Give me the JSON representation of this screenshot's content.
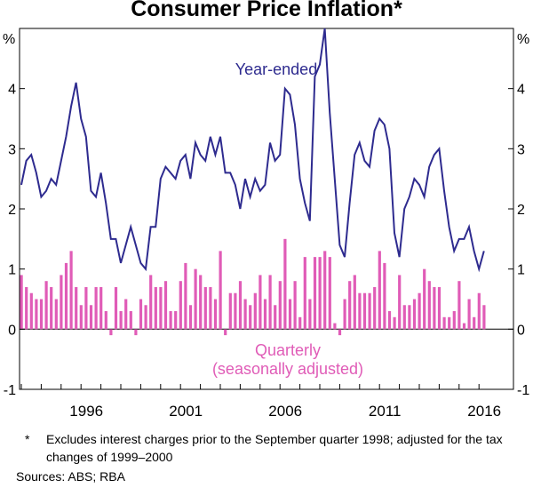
{
  "chart_data": {
    "type": "bar+line",
    "title": "Consumer Price Inflation*",
    "y_unit_label": "%",
    "ylim": [
      -1,
      5
    ],
    "yticks": [
      -1,
      0,
      1,
      2,
      3,
      4
    ],
    "x_tick_labels": [
      "1996",
      "2001",
      "2006",
      "2011",
      "2016"
    ],
    "x_tick_positions": [
      1996.0,
      2001.0,
      2006.0,
      2011.0,
      2016.0
    ],
    "x_range": [
      1993.0,
      2016.75
    ],
    "grid": false,
    "line_series": {
      "name": "Year-ended",
      "color": "#2e2b8f",
      "x": [
        1993.0,
        1993.25,
        1993.5,
        1993.75,
        1994.0,
        1994.25,
        1994.5,
        1994.75,
        1995.0,
        1995.25,
        1995.5,
        1995.75,
        1996.0,
        1996.25,
        1996.5,
        1996.75,
        1997.0,
        1997.25,
        1997.5,
        1997.75,
        1998.0,
        1998.25,
        1998.5,
        1998.75,
        1999.0,
        1999.25,
        1999.5,
        1999.75,
        2000.0,
        2000.25,
        2000.5,
        2000.75,
        2001.0,
        2001.25,
        2001.5,
        2001.75,
        2002.0,
        2002.25,
        2002.5,
        2002.75,
        2003.0,
        2003.25,
        2003.5,
        2003.75,
        2004.0,
        2004.25,
        2004.5,
        2004.75,
        2005.0,
        2005.25,
        2005.5,
        2005.75,
        2006.0,
        2006.25,
        2006.5,
        2006.75,
        2007.0,
        2007.25,
        2007.5,
        2007.75,
        2008.0,
        2008.25,
        2008.5,
        2008.75,
        2009.0,
        2009.25,
        2009.5,
        2009.75,
        2010.0,
        2010.25,
        2010.5,
        2010.75,
        2011.0,
        2011.25,
        2011.5,
        2011.75,
        2012.0,
        2012.25,
        2012.5,
        2012.75,
        2013.0,
        2013.25,
        2013.5,
        2013.75,
        2014.0,
        2014.25,
        2014.5,
        2014.75,
        2015.0,
        2015.25,
        2015.5,
        2015.75,
        2016.0,
        2016.25
      ],
      "values": [
        2.4,
        2.8,
        2.9,
        2.6,
        2.2,
        2.3,
        2.5,
        2.4,
        2.8,
        3.2,
        3.7,
        4.1,
        3.5,
        3.2,
        2.3,
        2.2,
        2.6,
        2.1,
        1.5,
        1.5,
        1.1,
        1.4,
        1.7,
        1.4,
        1.1,
        1.0,
        1.7,
        1.7,
        2.5,
        2.7,
        2.6,
        2.5,
        2.8,
        2.9,
        2.5,
        3.1,
        2.9,
        2.8,
        3.2,
        2.9,
        3.2,
        2.6,
        2.6,
        2.4,
        2.0,
        2.5,
        2.2,
        2.5,
        2.3,
        2.4,
        3.1,
        2.8,
        2.9,
        4.0,
        3.9,
        3.4,
        2.5,
        2.1,
        1.8,
        4.2,
        4.4,
        5.0,
        3.6,
        2.5,
        1.4,
        1.2,
        2.1,
        2.9,
        3.1,
        2.8,
        2.7,
        3.3,
        3.5,
        3.4,
        3.0,
        1.6,
        1.2,
        2.0,
        2.2,
        2.5,
        2.4,
        2.2,
        2.7,
        2.9,
        3.0,
        2.3,
        1.7,
        1.3,
        1.5,
        1.5,
        1.7,
        1.3,
        1.0,
        1.3
      ]
    },
    "bar_series": {
      "name": "Quarterly",
      "name_line2": "(seasonally adjusted)",
      "color": "#e05cb7",
      "x": [
        1993.0,
        1993.25,
        1993.5,
        1993.75,
        1994.0,
        1994.25,
        1994.5,
        1994.75,
        1995.0,
        1995.25,
        1995.5,
        1995.75,
        1996.0,
        1996.25,
        1996.5,
        1996.75,
        1997.0,
        1997.25,
        1997.5,
        1997.75,
        1998.0,
        1998.25,
        1998.5,
        1998.75,
        1999.0,
        1999.25,
        1999.5,
        1999.75,
        2000.0,
        2000.25,
        2000.5,
        2000.75,
        2001.0,
        2001.25,
        2001.5,
        2001.75,
        2002.0,
        2002.25,
        2002.5,
        2002.75,
        2003.0,
        2003.25,
        2003.5,
        2003.75,
        2004.0,
        2004.25,
        2004.5,
        2004.75,
        2005.0,
        2005.25,
        2005.5,
        2005.75,
        2006.0,
        2006.25,
        2006.5,
        2006.75,
        2007.0,
        2007.25,
        2007.5,
        2007.75,
        2008.0,
        2008.25,
        2008.5,
        2008.75,
        2009.0,
        2009.25,
        2009.5,
        2009.75,
        2010.0,
        2010.25,
        2010.5,
        2010.75,
        2011.0,
        2011.25,
        2011.5,
        2011.75,
        2012.0,
        2012.25,
        2012.5,
        2012.75,
        2013.0,
        2013.25,
        2013.5,
        2013.75,
        2014.0,
        2014.25,
        2014.5,
        2014.75,
        2015.0,
        2015.25,
        2015.5,
        2015.75,
        2016.0,
        2016.25
      ],
      "values": [
        0.9,
        0.7,
        0.6,
        0.5,
        0.5,
        0.8,
        0.7,
        0.5,
        0.9,
        1.1,
        1.3,
        0.7,
        0.4,
        0.7,
        0.4,
        0.7,
        0.7,
        0.3,
        -0.1,
        0.7,
        0.3,
        0.5,
        0.3,
        -0.1,
        0.5,
        0.4,
        0.9,
        0.7,
        0.7,
        0.8,
        0.3,
        0.3,
        0.8,
        1.1,
        0.4,
        1.0,
        0.9,
        0.7,
        0.7,
        0.5,
        1.3,
        -0.1,
        0.6,
        0.6,
        0.8,
        0.5,
        0.4,
        0.6,
        0.9,
        0.5,
        0.9,
        0.4,
        0.8,
        1.5,
        0.5,
        0.8,
        0.2,
        1.2,
        0.5,
        1.2,
        1.2,
        1.3,
        1.2,
        0.1,
        -0.1,
        0.5,
        0.8,
        0.9,
        0.6,
        0.6,
        0.6,
        0.7,
        1.3,
        1.1,
        0.3,
        0.2,
        0.9,
        0.4,
        0.4,
        0.5,
        0.6,
        1.0,
        0.8,
        0.7,
        0.7,
        0.2,
        0.2,
        0.3,
        0.8,
        0.1,
        0.5,
        0.2,
        0.6,
        0.4
      ]
    }
  },
  "footnote_mark": "*",
  "footnote_text": "Excludes interest charges prior to the September quarter 1998; adjusted for the tax changes of 1999–2000",
  "sources_text": "Sources:  ABS; RBA"
}
